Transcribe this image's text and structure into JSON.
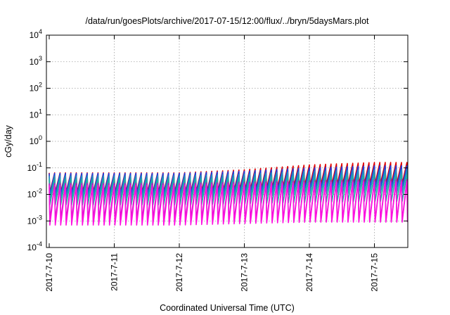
{
  "chart_data": {
    "type": "line",
    "title": "/data/run/goesPlots/archive/2017-07-15/12:00/flux/../bryn/5daysMars.plot",
    "xlabel": "Coordinated Universal Time (UTC)",
    "ylabel": "cGy/day",
    "yscale": "log",
    "ylim": [
      0.0001,
      10000
    ],
    "xlim_days": [
      0,
      5.55
    ],
    "grid": true,
    "legend": "none",
    "x_tick_labels": [
      "2017-7-10",
      "2017-7-11",
      "2017-7-12",
      "2017-7-13",
      "2017-7-14",
      "2017-7-15"
    ],
    "y_ticks": [
      {
        "base": "10",
        "exp": "-4"
      },
      {
        "base": "10",
        "exp": "-3"
      },
      {
        "base": "10",
        "exp": "-2"
      },
      {
        "base": "10",
        "exp": "-1"
      },
      {
        "base": "10",
        "exp": "0"
      },
      {
        "base": "10",
        "exp": "1"
      },
      {
        "base": "10",
        "exp": "2"
      },
      {
        "base": "10",
        "exp": "3"
      },
      {
        "base": "10",
        "exp": "4"
      }
    ],
    "oscillation_period_hours": 2,
    "series": [
      {
        "color": "#e00000",
        "peak": [
          0.065,
          0.065,
          0.065,
          0.085,
          0.13,
          0.16
        ],
        "trough": [
          0.012,
          0.012,
          0.012,
          0.015,
          0.022,
          0.025
        ]
      },
      {
        "color": "#2040e0",
        "peak": [
          0.062,
          0.062,
          0.062,
          0.075,
          0.1,
          0.12
        ],
        "trough": [
          0.01,
          0.01,
          0.01,
          0.012,
          0.016,
          0.018
        ]
      },
      {
        "color": "#2090c0",
        "peak": [
          0.05,
          0.05,
          0.05,
          0.058,
          0.075,
          0.085
        ],
        "trough": [
          0.007,
          0.007,
          0.007,
          0.008,
          0.01,
          0.011
        ]
      },
      {
        "color": "#20b0a0",
        "peak": [
          0.038,
          0.038,
          0.038,
          0.042,
          0.05,
          0.055
        ],
        "trough": [
          0.004,
          0.004,
          0.004,
          0.0045,
          0.005,
          0.0055
        ]
      },
      {
        "color": "#c020c0",
        "peak": [
          0.026,
          0.026,
          0.026,
          0.029,
          0.033,
          0.036
        ],
        "trough": [
          0.0011,
          0.0011,
          0.0011,
          0.00105,
          0.001,
          0.001
        ]
      },
      {
        "color": "#ff10e0",
        "peak": [
          0.022,
          0.022,
          0.022,
          0.025,
          0.028,
          0.03
        ],
        "trough": [
          0.0007,
          0.0007,
          0.0007,
          0.0008,
          0.0009,
          0.0009
        ]
      }
    ]
  }
}
